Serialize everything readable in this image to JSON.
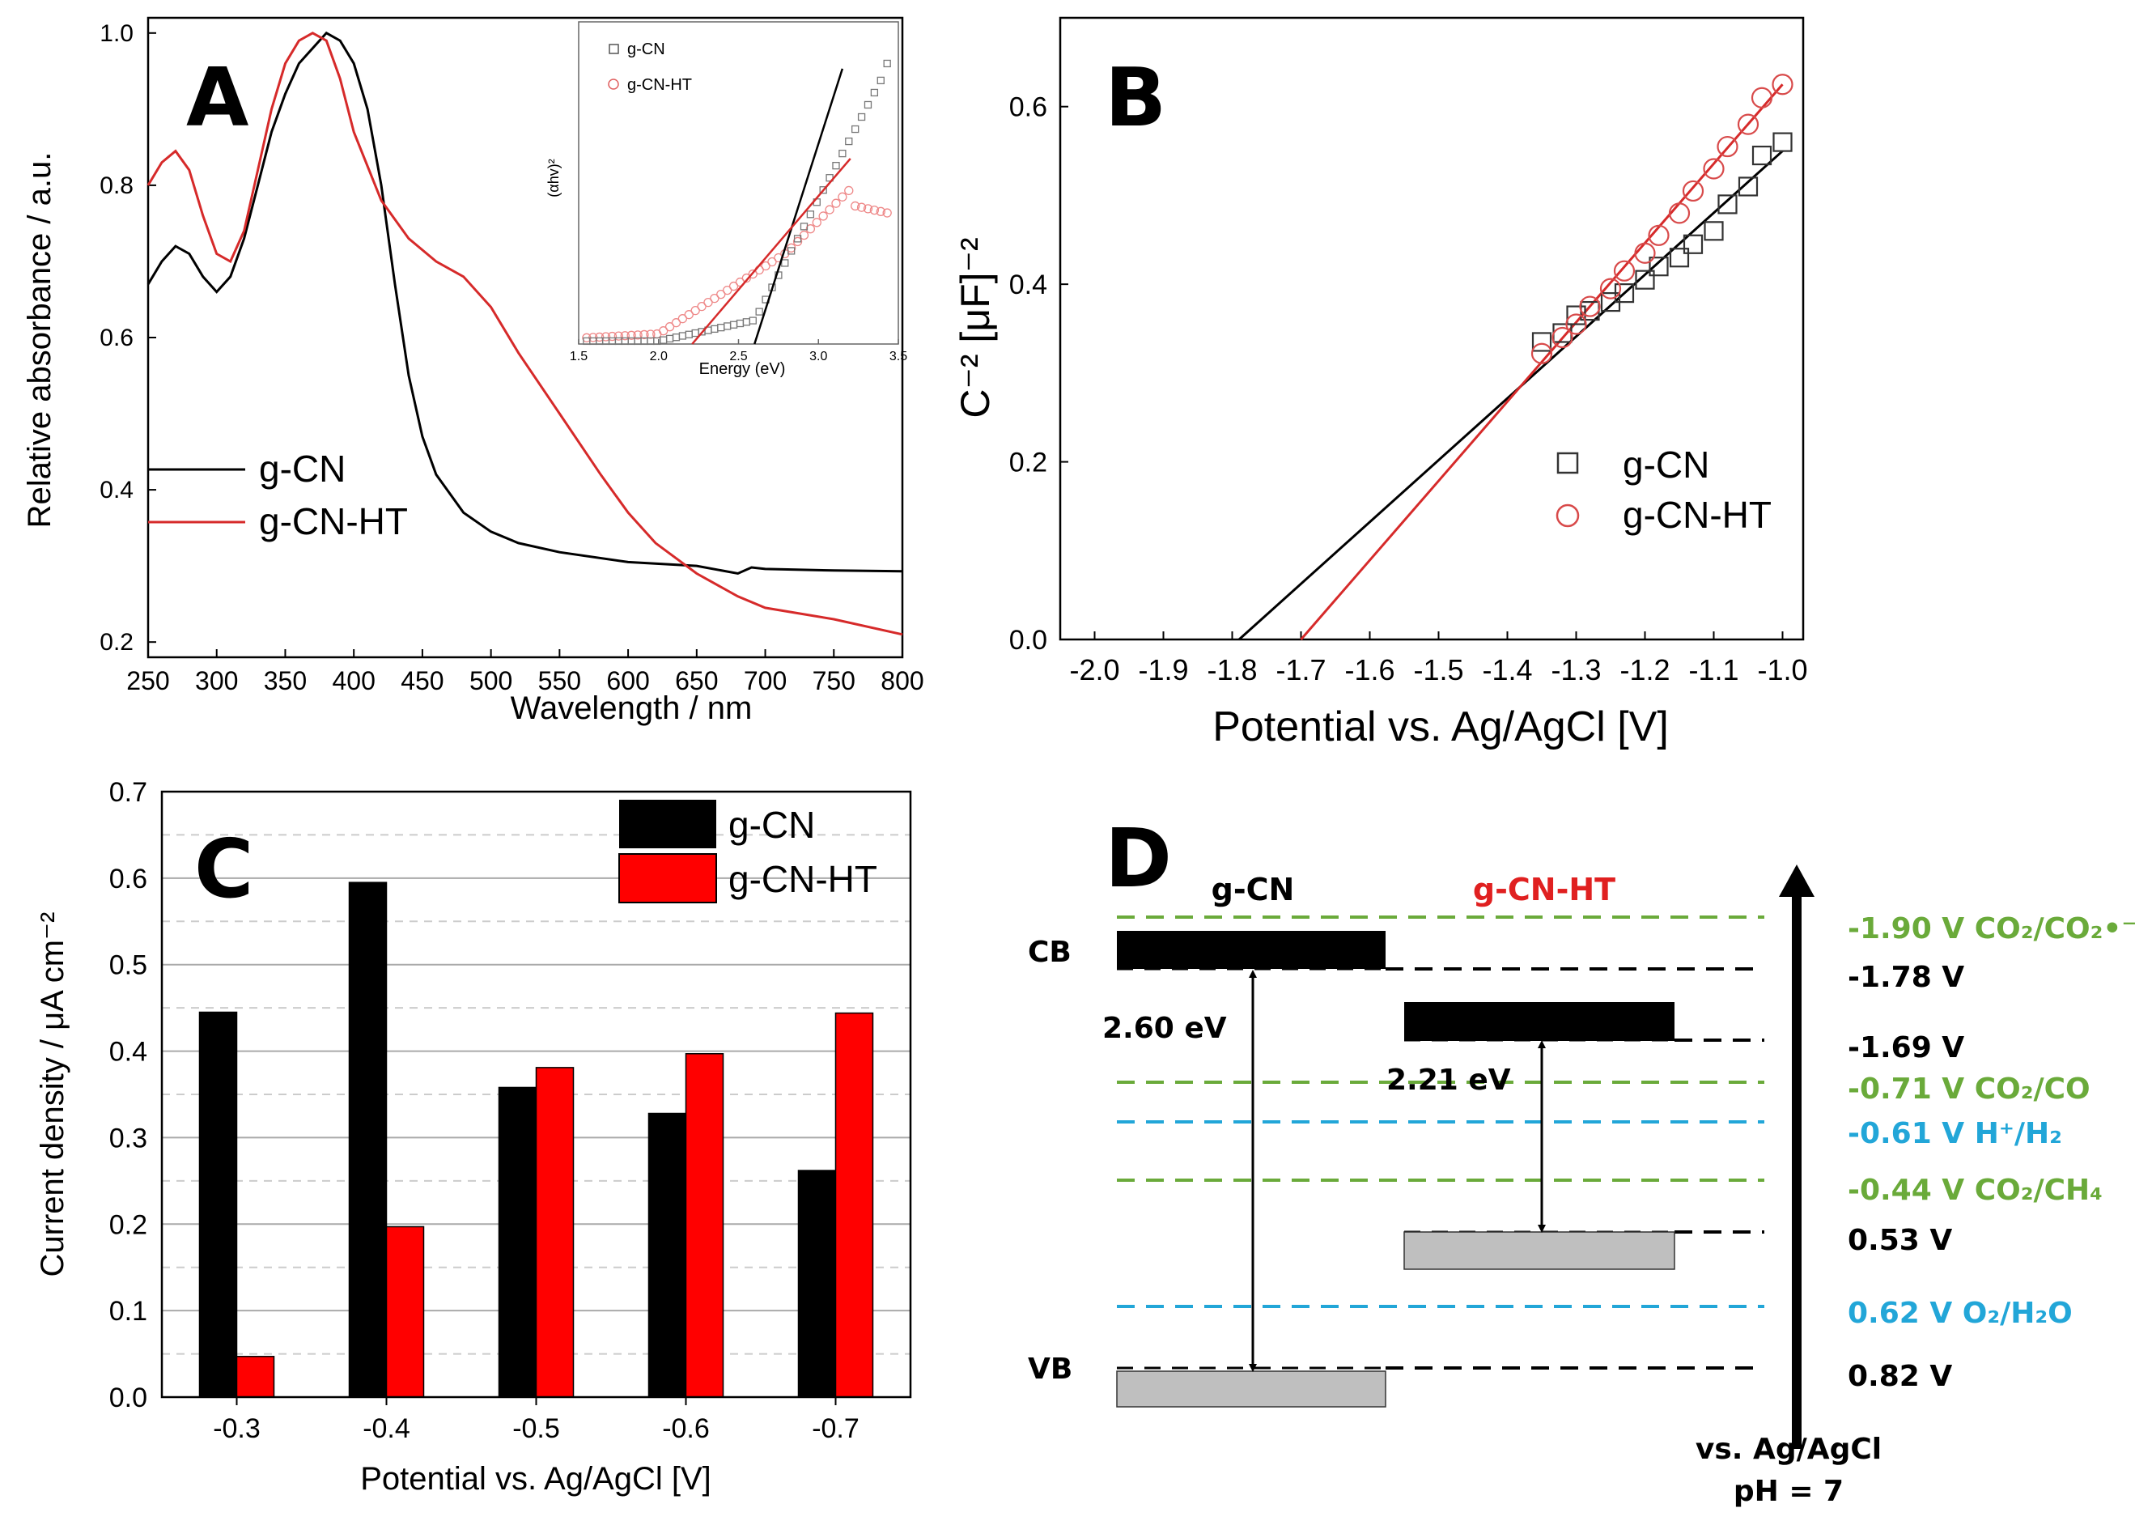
{
  "chart_data": [
    {
      "panel": "A",
      "type": "line",
      "panel_letter": "A",
      "xlabel": "Wavelength / nm",
      "ylabel": "Relative absorbance / a.u.",
      "xlim": [
        250,
        800
      ],
      "ylim": [
        0.18,
        1.02
      ],
      "xticks": [
        "250",
        "300",
        "350",
        "400",
        "450",
        "500",
        "550",
        "600",
        "650",
        "700",
        "750",
        "800"
      ],
      "yticks": [
        "0.2",
        "0.4",
        "0.6",
        "0.8",
        "1.0"
      ],
      "legend": [
        "g-CN",
        "g-CN-HT"
      ],
      "colors": {
        "g-CN": "#000000",
        "g-CN-HT": "#d62a2a"
      },
      "series": [
        {
          "name": "g-CN",
          "x": [
            250,
            260,
            270,
            280,
            290,
            300,
            310,
            320,
            330,
            340,
            350,
            360,
            370,
            380,
            390,
            400,
            410,
            420,
            430,
            440,
            450,
            460,
            480,
            500,
            520,
            550,
            600,
            650,
            680,
            690,
            700,
            750,
            800
          ],
          "y": [
            0.67,
            0.7,
            0.72,
            0.71,
            0.68,
            0.66,
            0.68,
            0.73,
            0.8,
            0.87,
            0.92,
            0.96,
            0.98,
            1.0,
            0.99,
            0.96,
            0.9,
            0.8,
            0.67,
            0.55,
            0.47,
            0.42,
            0.37,
            0.345,
            0.33,
            0.318,
            0.305,
            0.3,
            0.29,
            0.298,
            0.296,
            0.294,
            0.293
          ]
        },
        {
          "name": "g-CN-HT",
          "x": [
            250,
            260,
            270,
            280,
            290,
            300,
            310,
            320,
            330,
            340,
            350,
            360,
            370,
            380,
            390,
            400,
            420,
            440,
            460,
            480,
            500,
            520,
            550,
            580,
            600,
            620,
            650,
            680,
            700,
            750,
            800
          ],
          "y": [
            0.8,
            0.83,
            0.845,
            0.82,
            0.76,
            0.71,
            0.7,
            0.74,
            0.82,
            0.9,
            0.96,
            0.99,
            1.0,
            0.99,
            0.94,
            0.87,
            0.78,
            0.73,
            0.7,
            0.68,
            0.64,
            0.58,
            0.5,
            0.42,
            0.37,
            0.33,
            0.29,
            0.26,
            0.245,
            0.23,
            0.21
          ]
        }
      ],
      "inset": {
        "xlabel": "Energy (eV)",
        "ylabel": "(αhv)²",
        "xlim": [
          1.5,
          3.5
        ],
        "xticks": [
          "1.5",
          "2.0",
          "2.5",
          "3.0",
          "3.5"
        ],
        "legend": [
          "g-CN",
          "g-CN-HT"
        ],
        "fit_lines": [
          {
            "name": "g-CN",
            "x0": 2.6,
            "x1": 3.15
          },
          {
            "name": "g-CN-HT",
            "x0": 2.21,
            "x1": 3.2
          }
        ]
      }
    },
    {
      "panel": "B",
      "type": "scatter",
      "panel_letter": "B",
      "xlabel": "Potential vs. Ag/AgCl [V]",
      "ylabel": "C⁻² [μF]⁻²",
      "xlim": [
        -2.05,
        -0.97
      ],
      "ylim": [
        0.0,
        0.7
      ],
      "xticks": [
        "-2.0",
        "-1.9",
        "-1.8",
        "-1.7",
        "-1.6",
        "-1.5",
        "-1.4",
        "-1.3",
        "-1.2",
        "-1.1",
        "-1.0"
      ],
      "yticks": [
        "0.0",
        "0.2",
        "0.4",
        "0.6"
      ],
      "legend": [
        "g-CN",
        "g-CN-HT"
      ],
      "series": [
        {
          "name": "g-CN",
          "marker": "square",
          "x": [
            -1.35,
            -1.32,
            -1.3,
            -1.28,
            -1.25,
            -1.23,
            -1.2,
            -1.18,
            -1.15,
            -1.13,
            -1.1,
            -1.08,
            -1.05,
            -1.03,
            -1.0
          ],
          "y": [
            0.335,
            0.345,
            0.365,
            0.37,
            0.38,
            0.39,
            0.405,
            0.42,
            0.43,
            0.445,
            0.46,
            0.49,
            0.51,
            0.545,
            0.56
          ],
          "fit": {
            "x0": -1.79,
            "y0": 0.0,
            "x1": -1.0,
            "y1": 0.55
          }
        },
        {
          "name": "g-CN-HT",
          "marker": "circle",
          "x": [
            -1.35,
            -1.32,
            -1.3,
            -1.28,
            -1.25,
            -1.23,
            -1.2,
            -1.18,
            -1.15,
            -1.13,
            -1.1,
            -1.08,
            -1.05,
            -1.03,
            -1.0
          ],
          "y": [
            0.322,
            0.34,
            0.355,
            0.375,
            0.395,
            0.415,
            0.435,
            0.455,
            0.48,
            0.505,
            0.53,
            0.555,
            0.58,
            0.61,
            0.625
          ],
          "fit": {
            "x0": -1.7,
            "y0": 0.0,
            "x1": -1.0,
            "y1": 0.625
          }
        }
      ]
    },
    {
      "panel": "C",
      "type": "bar",
      "panel_letter": "C",
      "xlabel": "Potential vs. Ag/AgCl [V]",
      "ylabel": "Current density / μA cm⁻²",
      "categories": [
        "-0.3",
        "-0.4",
        "-0.5",
        "-0.6",
        "-0.7"
      ],
      "ylim": [
        0.0,
        0.7
      ],
      "yticks": [
        "0.0",
        "0.1",
        "0.2",
        "0.3",
        "0.4",
        "0.5",
        "0.6",
        "0.7"
      ],
      "legend": [
        "g-CN",
        "g-CN-HT"
      ],
      "series": [
        {
          "name": "g-CN",
          "color": "#000000",
          "values": [
            0.445,
            0.595,
            0.358,
            0.328,
            0.262
          ]
        },
        {
          "name": "g-CN-HT",
          "color": "#ff0000",
          "values": [
            0.047,
            0.197,
            0.381,
            0.397,
            0.444
          ]
        }
      ]
    },
    {
      "panel": "D",
      "type": "diagram",
      "panel_letter": "D",
      "materials": [
        {
          "name": "g-CN",
          "color": "#000000",
          "gap": "2.60 eV"
        },
        {
          "name": "g-CN-HT",
          "color": "#e02020",
          "gap": "2.21 eV"
        }
      ],
      "band_labels": {
        "cb": "CB",
        "vb": "VB"
      },
      "axis_label": {
        "line1": "vs. Ag/AgCl",
        "line2": "pH = 7"
      },
      "levels": [
        {
          "potential": "-1.90 V",
          "couple": "CO₂/CO₂•⁻",
          "color": "#6aaa3a",
          "value": -1.9
        },
        {
          "potential": "-1.78 V",
          "couple": "",
          "color": "#000000",
          "value": -1.78
        },
        {
          "potential": "-1.69 V",
          "couple": "",
          "color": "#000000",
          "value": -1.69
        },
        {
          "potential": "-0.71 V",
          "couple": "CO₂/CO",
          "color": "#6aaa3a",
          "value": -0.71
        },
        {
          "potential": "-0.61 V",
          "couple": "H⁺/H₂",
          "color": "#22a6d8",
          "value": -0.61
        },
        {
          "potential": "-0.44 V",
          "couple": "CO₂/CH₄",
          "color": "#6aaa3a",
          "value": -0.44
        },
        {
          "potential": "0.53 V",
          "couple": "",
          "color": "#000000",
          "value": 0.53
        },
        {
          "potential": "0.62 V",
          "couple": "O₂/H₂O",
          "color": "#22a6d8",
          "value": 0.62
        },
        {
          "potential": "0.82 V",
          "couple": "",
          "color": "#000000",
          "value": 0.82
        }
      ]
    }
  ]
}
